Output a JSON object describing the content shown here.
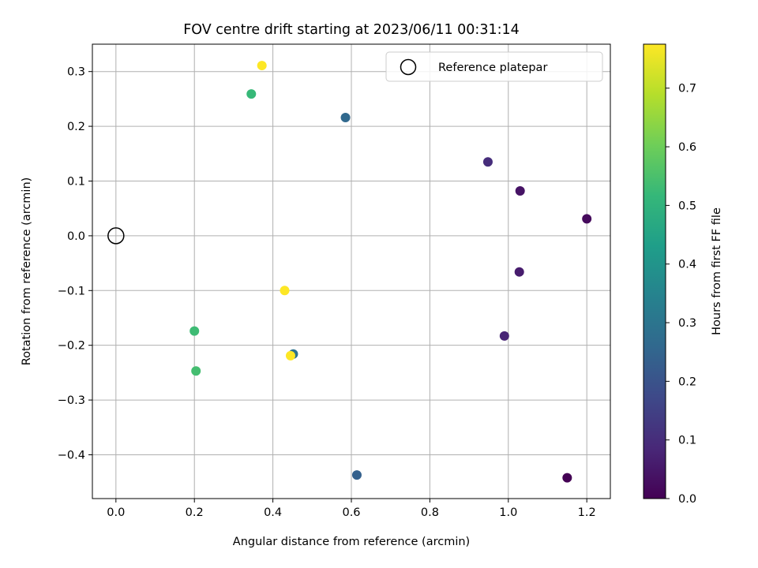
{
  "chart_data": {
    "type": "scatter",
    "title": "FOV centre drift starting at 2023/06/11 00:31:14",
    "xlabel": "Angular distance from reference (arcmin)",
    "ylabel": "Rotation from reference (arcmin)",
    "xlim": [
      -0.06,
      1.26
    ],
    "ylim": [
      -0.48,
      0.35
    ],
    "xticks": [
      0.0,
      0.2,
      0.4,
      0.6,
      0.8,
      1.0,
      1.2
    ],
    "xtick_labels": [
      "0.0",
      "0.2",
      "0.4",
      "0.6",
      "0.8",
      "1.0",
      "1.2"
    ],
    "yticks": [
      0.3,
      0.2,
      0.1,
      0.0,
      -0.1,
      -0.2,
      -0.3,
      -0.4
    ],
    "ytick_labels": [
      "0.3",
      "0.2",
      "0.1",
      "0.0",
      "−0.1",
      "−0.2",
      "−0.3",
      "−0.4"
    ],
    "grid": true,
    "legend": {
      "position": "top-right",
      "entries": [
        "Reference platepar"
      ]
    },
    "reference_point": {
      "x": 0.0,
      "y": 0.0
    },
    "colormap": "viridis",
    "colorbar": {
      "label": "Hours from first FF file",
      "range": [
        0.0,
        0.775
      ],
      "ticks": [
        0.0,
        0.1,
        0.2,
        0.3,
        0.4,
        0.5,
        0.6,
        0.7
      ],
      "tick_labels": [
        "0.0",
        "0.1",
        "0.2",
        "0.3",
        "0.4",
        "0.5",
        "0.6",
        "0.7"
      ]
    },
    "points": [
      {
        "x": 1.15,
        "y": -0.442,
        "hours": 0.0
      },
      {
        "x": 1.2,
        "y": 0.031,
        "hours": 0.02
      },
      {
        "x": 1.03,
        "y": 0.082,
        "hours": 0.04
      },
      {
        "x": 1.028,
        "y": -0.066,
        "hours": 0.06
      },
      {
        "x": 0.99,
        "y": -0.183,
        "hours": 0.08
      },
      {
        "x": 0.948,
        "y": 0.135,
        "hours": 0.1
      },
      {
        "x": 0.614,
        "y": -0.437,
        "hours": 0.24
      },
      {
        "x": 0.585,
        "y": 0.216,
        "hours": 0.26
      },
      {
        "x": 0.452,
        "y": -0.216,
        "hours": 0.29
      },
      {
        "x": 0.345,
        "y": 0.259,
        "hours": 0.52
      },
      {
        "x": 0.2,
        "y": -0.174,
        "hours": 0.53
      },
      {
        "x": 0.204,
        "y": -0.247,
        "hours": 0.54
      },
      {
        "x": 0.372,
        "y": 0.311,
        "hours": 0.775
      },
      {
        "x": 0.43,
        "y": -0.1,
        "hours": 0.775
      },
      {
        "x": 0.445,
        "y": -0.219,
        "hours": 0.775
      }
    ],
    "viridis_stops": [
      "#440154",
      "#482878",
      "#3e4989",
      "#31688e",
      "#26828e",
      "#1f9e89",
      "#35b779",
      "#6ece58",
      "#b5de2b",
      "#fde725"
    ]
  }
}
